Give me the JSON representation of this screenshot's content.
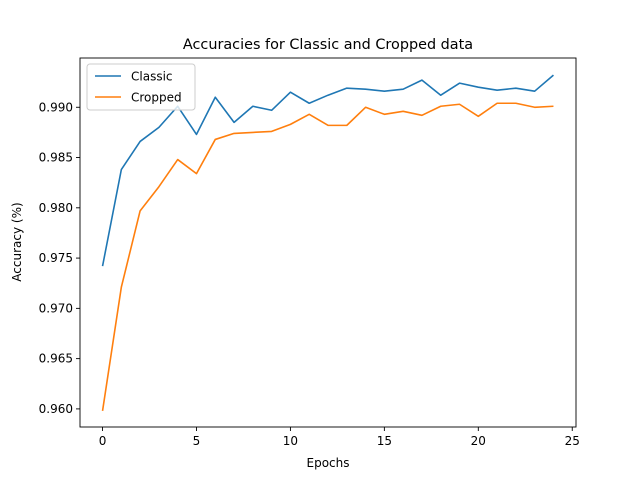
{
  "chart_data": {
    "type": "line",
    "title": "Accuracies for Classic and Cropped data",
    "xlabel": "Epochs",
    "ylabel": "Accuracy (%)",
    "xlim": [
      -1.2,
      25.2
    ],
    "ylim": [
      0.9582,
      0.9949
    ],
    "xticks": [
      0,
      5,
      10,
      15,
      20,
      25
    ],
    "xtick_labels": [
      "0",
      "5",
      "10",
      "15",
      "20",
      "25"
    ],
    "yticks": [
      0.96,
      0.965,
      0.97,
      0.975,
      0.98,
      0.985,
      0.99
    ],
    "ytick_labels": [
      "0.960",
      "0.965",
      "0.970",
      "0.975",
      "0.980",
      "0.985",
      "0.990"
    ],
    "grid": false,
    "legend_position": "top-left",
    "x": [
      0,
      1,
      2,
      3,
      4,
      5,
      6,
      7,
      8,
      9,
      10,
      11,
      12,
      13,
      14,
      15,
      16,
      17,
      18,
      19,
      20,
      21,
      22,
      23,
      24
    ],
    "series": [
      {
        "name": "Classic",
        "color": "#1f77b4",
        "values": [
          0.9742,
          0.9838,
          0.9866,
          0.988,
          0.9901,
          0.9873,
          0.991,
          0.9885,
          0.9901,
          0.9897,
          0.9915,
          0.9904,
          0.9912,
          0.9919,
          0.9918,
          0.9916,
          0.9918,
          0.9927,
          0.9912,
          0.9924,
          0.992,
          0.9917,
          0.9919,
          0.9916,
          0.9932
        ]
      },
      {
        "name": "Cropped",
        "color": "#ff7f0e",
        "values": [
          0.9598,
          0.9721,
          0.9797,
          0.9821,
          0.9848,
          0.9834,
          0.9868,
          0.9874,
          0.9875,
          0.9876,
          0.9883,
          0.9893,
          0.9882,
          0.9882,
          0.99,
          0.9893,
          0.9896,
          0.9892,
          0.9901,
          0.9903,
          0.9891,
          0.9904,
          0.9904,
          0.99,
          0.9901
        ]
      }
    ]
  }
}
